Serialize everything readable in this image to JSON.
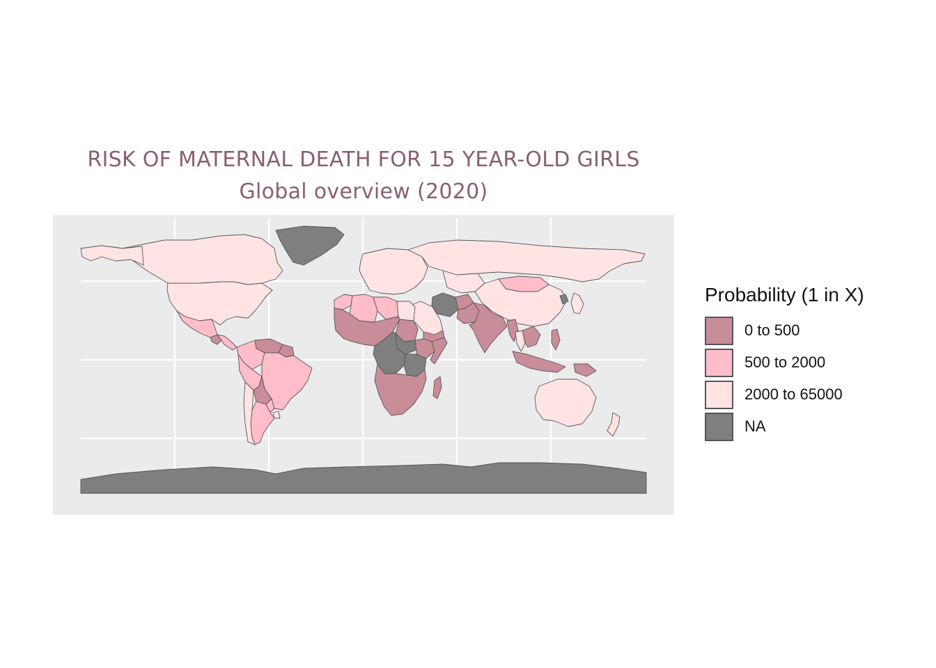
{
  "chart": {
    "title": "RISK OF MATERNAL DEATH FOR 15 YEAR-OLD GIRLS",
    "subtitle": "Global overview (2020)"
  },
  "colors": {
    "title": "#8a5f6b",
    "panel_background": "#ebebeb",
    "gridline": "#ffffff",
    "border": "#555555",
    "bin_0_500": "#c98d99",
    "bin_500_2000": "#ffbdc9",
    "bin_2000_65000": "#ffe4e3",
    "bin_na": "#7f7f7f"
  },
  "legend": {
    "title": "Probability (1 in X)",
    "items": [
      {
        "label": "0 to 500",
        "color": "#c98d99"
      },
      {
        "label": "500 to 2000",
        "color": "#ffbdc9"
      },
      {
        "label": "2000 to 65000",
        "color": "#ffe4e3"
      },
      {
        "label": "NA",
        "color": "#7f7f7f"
      }
    ]
  },
  "chart_data": {
    "type": "choropleth",
    "title": "RISK OF MATERNAL DEATH FOR 15 YEAR-OLD GIRLS",
    "subtitle": "Global overview (2020)",
    "legend_title": "Probability (1 in X)",
    "legend_position": "right",
    "grid": true,
    "bins": [
      "0 to 500",
      "500 to 2000",
      "2000 to 65000",
      "NA"
    ],
    "regions": [
      {
        "name": "Canada",
        "bin": "2000 to 65000"
      },
      {
        "name": "United States",
        "bin": "2000 to 65000"
      },
      {
        "name": "Alaska",
        "bin": "2000 to 65000"
      },
      {
        "name": "Greenland",
        "bin": "NA"
      },
      {
        "name": "Mexico",
        "bin": "500 to 2000"
      },
      {
        "name": "Guatemala",
        "bin": "0 to 500"
      },
      {
        "name": "Central America",
        "bin": "500 to 2000"
      },
      {
        "name": "Venezuela",
        "bin": "0 to 500"
      },
      {
        "name": "Guyana",
        "bin": "0 to 500"
      },
      {
        "name": "Colombia",
        "bin": "500 to 2000"
      },
      {
        "name": "Brazil",
        "bin": "500 to 2000"
      },
      {
        "name": "Peru",
        "bin": "500 to 2000"
      },
      {
        "name": "Bolivia",
        "bin": "0 to 500"
      },
      {
        "name": "Paraguay",
        "bin": "500 to 2000"
      },
      {
        "name": "Argentina",
        "bin": "500 to 2000"
      },
      {
        "name": "Chile",
        "bin": "2000 to 65000"
      },
      {
        "name": "Uruguay",
        "bin": "2000 to 65000"
      },
      {
        "name": "Europe",
        "bin": "2000 to 65000"
      },
      {
        "name": "Russia",
        "bin": "2000 to 65000"
      },
      {
        "name": "Mongolia",
        "bin": "500 to 2000"
      },
      {
        "name": "China",
        "bin": "2000 to 65000"
      },
      {
        "name": "Kazakhstan",
        "bin": "2000 to 65000"
      },
      {
        "name": "Iran",
        "bin": "NA"
      },
      {
        "name": "Saudi Arabia",
        "bin": "2000 to 65000"
      },
      {
        "name": "Yemen",
        "bin": "0 to 500"
      },
      {
        "name": "Afghanistan",
        "bin": "0 to 500"
      },
      {
        "name": "Pakistan",
        "bin": "0 to 500"
      },
      {
        "name": "India",
        "bin": "0 to 500"
      },
      {
        "name": "Myanmar",
        "bin": "0 to 500"
      },
      {
        "name": "Thailand",
        "bin": "2000 to 65000"
      },
      {
        "name": "Southeast Asia",
        "bin": "0 to 500"
      },
      {
        "name": "Japan",
        "bin": "2000 to 65000"
      },
      {
        "name": "North Korea",
        "bin": "NA"
      },
      {
        "name": "Philippines",
        "bin": "0 to 500"
      },
      {
        "name": "Indonesia",
        "bin": "0 to 500"
      },
      {
        "name": "Papua New Guinea",
        "bin": "0 to 500"
      },
      {
        "name": "Australia",
        "bin": "2000 to 65000"
      },
      {
        "name": "New Zealand",
        "bin": "2000 to 65000"
      },
      {
        "name": "Morocco",
        "bin": "500 to 2000"
      },
      {
        "name": "Algeria",
        "bin": "500 to 2000"
      },
      {
        "name": "Libya",
        "bin": "500 to 2000"
      },
      {
        "name": "Egypt",
        "bin": "2000 to 65000"
      },
      {
        "name": "West Africa",
        "bin": "0 to 500"
      },
      {
        "name": "Sudan",
        "bin": "0 to 500"
      },
      {
        "name": "South Sudan",
        "bin": "NA"
      },
      {
        "name": "Ethiopia",
        "bin": "0 to 500"
      },
      {
        "name": "Somalia",
        "bin": "0 to 500"
      },
      {
        "name": "DR Congo",
        "bin": "NA"
      },
      {
        "name": "Tanzania",
        "bin": "NA"
      },
      {
        "name": "Southern Africa",
        "bin": "0 to 500"
      },
      {
        "name": "Madagascar",
        "bin": "0 to 500"
      },
      {
        "name": "Antarctica",
        "bin": "NA"
      }
    ]
  }
}
